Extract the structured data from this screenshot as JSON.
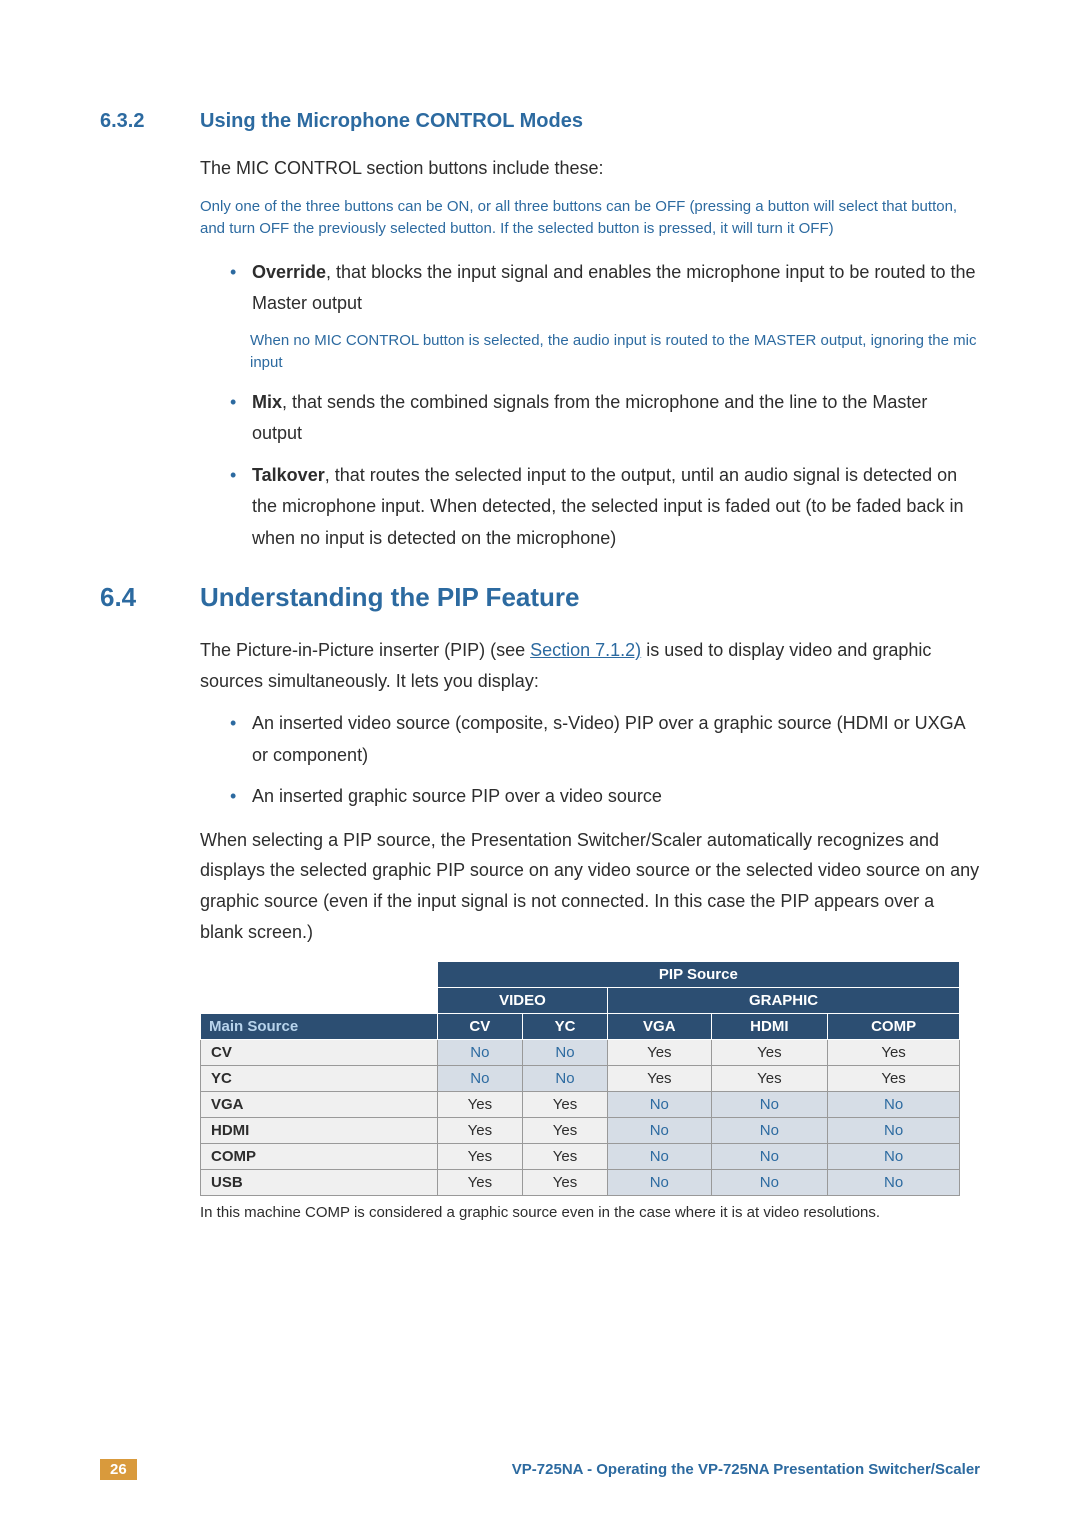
{
  "section632": {
    "num": "6.3.2",
    "title": "Using the Microphone CONTROL Modes",
    "intro": "The MIC CONTROL section buttons include these:",
    "note": "Only one of the three buttons can be ON, or all three buttons can be OFF (pressing a button will select that button, and turn OFF the previously selected button. If the selected button is pressed, it will turn it OFF)",
    "bullets": [
      {
        "label": "Override",
        "text": ", that blocks the input signal and enables the microphone input to be routed to the Master output",
        "subnote": "When no MIC CONTROL button is selected, the audio input is routed to the MASTER output, ignoring the mic input"
      },
      {
        "label": "Mix",
        "text": ", that sends the combined signals from the microphone and the line to the Master output"
      },
      {
        "label": "Talkover",
        "text": ", that routes the selected input to the output, until an audio signal is detected on the microphone input. When detected, the selected input is faded out (to be faded back in when no input is detected on the microphone)"
      }
    ]
  },
  "section64": {
    "num": "6.4",
    "title": "Understanding the PIP Feature",
    "intro_pre": "The Picture-in-Picture inserter (PIP) (see ",
    "intro_link": "Section 7.1.2)",
    "intro_post": " is used to display video and graphic sources simultaneously. It lets you display:",
    "bullets": [
      "An inserted video source (composite, s-Video) PIP over a graphic source (HDMI or UXGA or component)",
      "An inserted graphic source PIP over a video source"
    ],
    "para2": "When selecting a PIP source, the Presentation Switcher/Scaler automatically recognizes and displays the selected graphic PIP source on any video source or the selected video source on any graphic source (even if the input signal is not connected. In this case the PIP appears over a blank screen.)"
  },
  "table": {
    "pip_source": "PIP Source",
    "video": "VIDEO",
    "graphic": "GRAPHIC",
    "main_source": "Main Source",
    "cols": [
      "CV",
      "YC",
      "VGA",
      "HDMI",
      "COMP"
    ],
    "rows": [
      {
        "name": "CV",
        "cells": [
          "No",
          "No",
          "Yes",
          "Yes",
          "Yes"
        ]
      },
      {
        "name": "YC",
        "cells": [
          "No",
          "No",
          "Yes",
          "Yes",
          "Yes"
        ]
      },
      {
        "name": "VGA",
        "cells": [
          "Yes",
          "Yes",
          "No",
          "No",
          "No"
        ]
      },
      {
        "name": "HDMI",
        "cells": [
          "Yes",
          "Yes",
          "No",
          "No",
          "No"
        ]
      },
      {
        "name": "COMP",
        "cells": [
          "Yes",
          "Yes",
          "No",
          "No",
          "No"
        ]
      },
      {
        "name": "USB",
        "cells": [
          "Yes",
          "Yes",
          "No",
          "No",
          "No"
        ]
      }
    ],
    "note": "In this machine COMP is considered a graphic source even in the case where it is at video resolutions."
  },
  "footer": {
    "page": "26",
    "text": "VP-725NA - Operating the VP-725NA Presentation Switcher/Scaler"
  },
  "colors": {
    "brand_blue": "#2c6aa0",
    "header_blue": "#2c4e72",
    "no_bg": "#d6dde6",
    "yes_bg": "#f0f0f0",
    "badge": "#d99a3c"
  }
}
